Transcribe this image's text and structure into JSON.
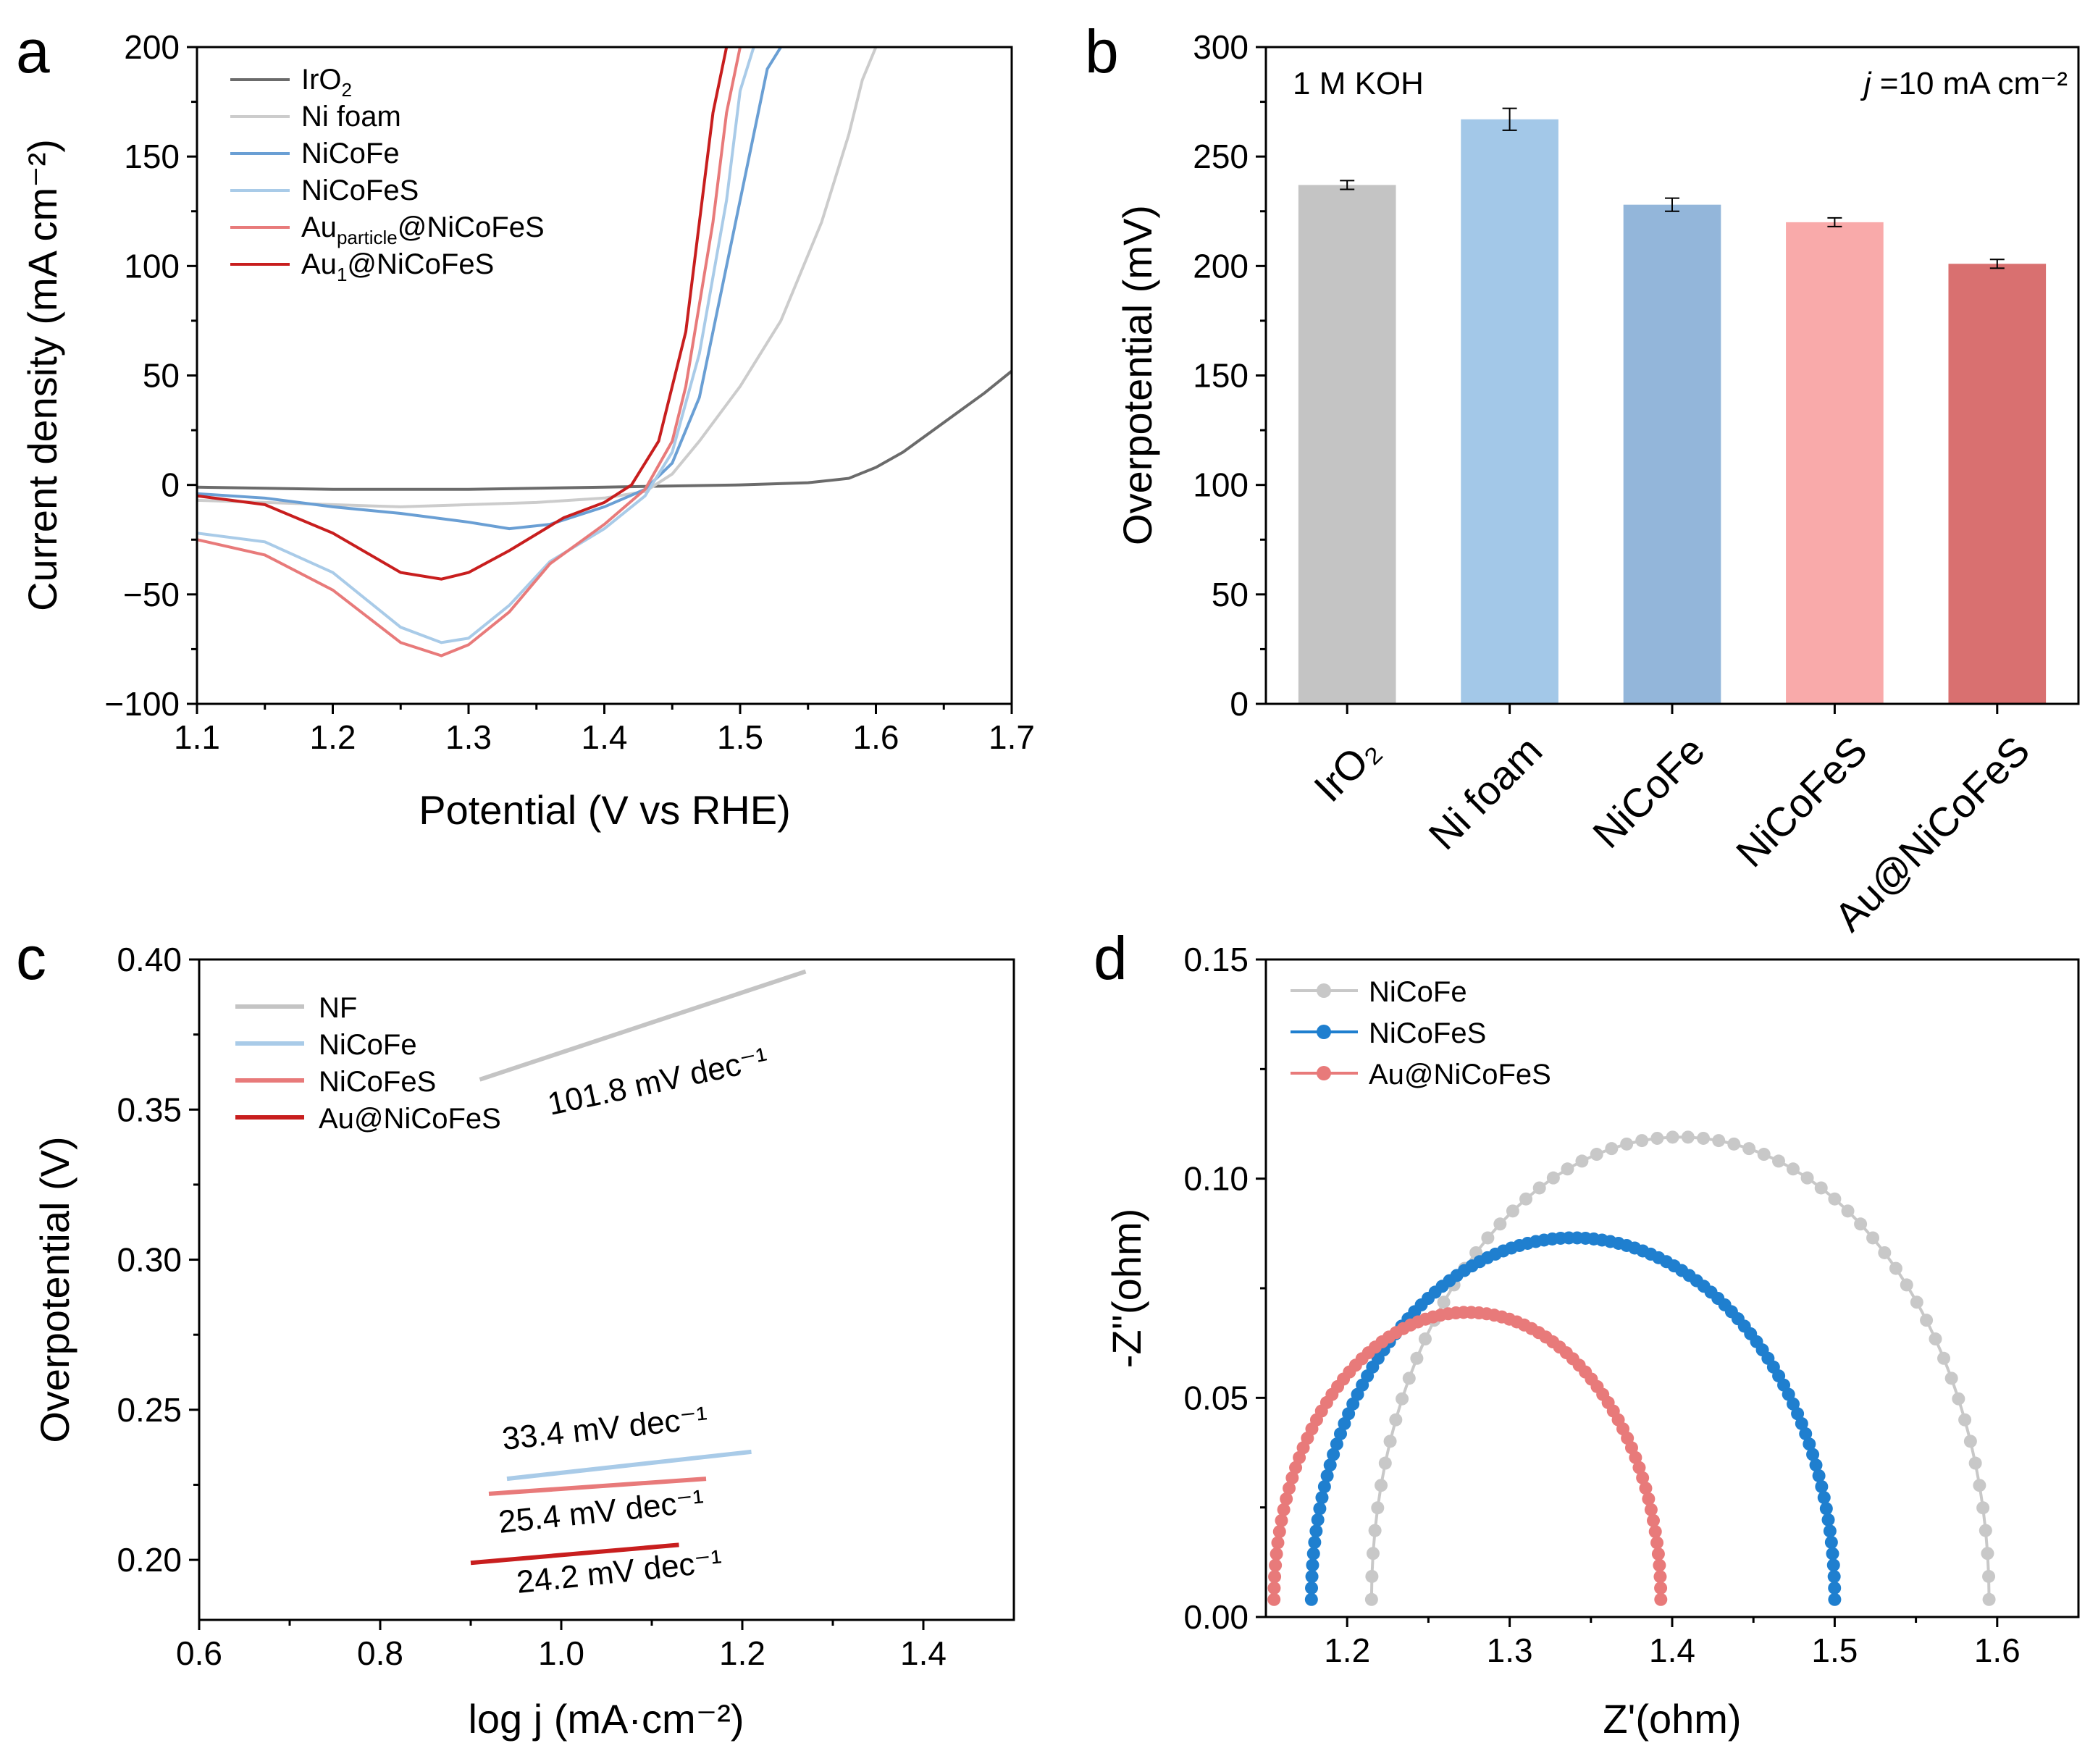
{
  "chart_data": [
    {
      "panel": "a",
      "type": "line",
      "title": "",
      "xlabel": "Potential (V vs RHE)",
      "ylabel": "Current density (mA cm⁻²)",
      "xlim": [
        1.1,
        1.7
      ],
      "ylim": [
        -100,
        200
      ],
      "xticks": [
        1.1,
        1.2,
        1.3,
        1.4,
        1.5,
        1.6,
        1.7
      ],
      "yticks": [
        -100,
        -50,
        0,
        50,
        100,
        150,
        200
      ],
      "xtick_labels": [
        "1.1",
        "1.2",
        "1.3",
        "1.4",
        "1.5",
        "1.6",
        "1.7"
      ],
      "ytick_labels": [
        "−100",
        "−50",
        "0",
        "50",
        "100",
        "150",
        "200"
      ],
      "legend_position": "top-left",
      "series": [
        {
          "name": "IrO₂",
          "color": "#6b6b6b",
          "x": [
            1.1,
            1.15,
            1.2,
            1.25,
            1.3,
            1.35,
            1.4,
            1.45,
            1.5,
            1.55,
            1.58,
            1.6,
            1.62,
            1.64,
            1.66,
            1.68,
            1.7
          ],
          "y": [
            -1,
            -1.5,
            -2,
            -2,
            -2,
            -1.5,
            -1,
            -0.5,
            0,
            1,
            3,
            8,
            15,
            24,
            33,
            42,
            52
          ]
        },
        {
          "name": "Ni foam",
          "color": "#cccccc",
          "x": [
            1.1,
            1.2,
            1.25,
            1.3,
            1.35,
            1.4,
            1.43,
            1.45,
            1.47,
            1.5,
            1.53,
            1.56,
            1.58,
            1.59,
            1.6
          ],
          "y": [
            -7,
            -9,
            -10,
            -9,
            -8,
            -6,
            -3,
            5,
            20,
            45,
            75,
            120,
            160,
            185,
            200
          ]
        },
        {
          "name": "NiCoFe",
          "color": "#6a9fd4",
          "x": [
            1.1,
            1.15,
            1.2,
            1.25,
            1.3,
            1.33,
            1.36,
            1.4,
            1.43,
            1.45,
            1.47,
            1.49,
            1.51,
            1.52,
            1.53
          ],
          "y": [
            -4,
            -6,
            -10,
            -13,
            -17,
            -20,
            -18,
            -10,
            -2,
            10,
            40,
            100,
            160,
            190,
            200
          ]
        },
        {
          "name": "NiCoFeS",
          "color": "#a9cbe8",
          "x": [
            1.1,
            1.15,
            1.2,
            1.25,
            1.28,
            1.3,
            1.33,
            1.36,
            1.4,
            1.43,
            1.45,
            1.47,
            1.49,
            1.5,
            1.51
          ],
          "y": [
            -22,
            -26,
            -40,
            -65,
            -72,
            -70,
            -55,
            -35,
            -20,
            -5,
            15,
            60,
            130,
            180,
            200
          ]
        },
        {
          "name": "Au_particle@NiCoFeS",
          "color": "#e87a7a",
          "x": [
            1.1,
            1.15,
            1.2,
            1.25,
            1.28,
            1.3,
            1.33,
            1.36,
            1.4,
            1.43,
            1.45,
            1.46,
            1.48,
            1.49,
            1.5
          ],
          "y": [
            -25,
            -32,
            -48,
            -72,
            -78,
            -73,
            -58,
            -36,
            -18,
            -2,
            20,
            45,
            120,
            170,
            200
          ]
        },
        {
          "name": "Au₁@NiCoFeS",
          "color": "#c81e1e",
          "x": [
            1.1,
            1.15,
            1.2,
            1.25,
            1.28,
            1.3,
            1.33,
            1.37,
            1.4,
            1.42,
            1.44,
            1.46,
            1.47,
            1.48,
            1.49
          ],
          "y": [
            -5,
            -9,
            -22,
            -40,
            -43,
            -40,
            -30,
            -15,
            -8,
            0,
            20,
            70,
            120,
            170,
            200
          ]
        }
      ],
      "legend": [
        {
          "base": "IrO",
          "sub": "2",
          "tail": ""
        },
        {
          "base": "Ni foam",
          "sub": "",
          "tail": ""
        },
        {
          "base": "NiCoFe",
          "sub": "",
          "tail": ""
        },
        {
          "base": "NiCoFeS",
          "sub": "",
          "tail": ""
        },
        {
          "base": "Au",
          "sub": "particle",
          "tail": "@NiCoFeS"
        },
        {
          "base": "Au",
          "sub": "1",
          "tail": "@NiCoFeS"
        }
      ]
    },
    {
      "panel": "b",
      "type": "bar",
      "title": "",
      "xlabel": "",
      "ylabel": "Overpotential (mV)",
      "ylim": [
        0,
        300
      ],
      "yticks": [
        0,
        50,
        100,
        150,
        200,
        250,
        300
      ],
      "categories": [
        "IrO₂",
        "Ni foam",
        "NiCoFe",
        "NiCoFeS",
        "Au@NiCoFeS"
      ],
      "values": [
        237,
        267,
        228,
        220,
        201
      ],
      "errors": [
        2,
        5,
        3,
        2,
        2
      ],
      "colors": [
        "#c4c4c4",
        "#a3c8e8",
        "#93b6da",
        "#f9aaaa",
        "#d97070"
      ],
      "annotations": {
        "electrolyte": "1 M KOH",
        "current_prefix": "j",
        "current_text": " =10 mA cm⁻²"
      }
    },
    {
      "panel": "c",
      "type": "line",
      "title": "",
      "xlabel": "log j (mA·cm⁻²)",
      "ylabel": "Overpotential (V)",
      "xlim": [
        0.6,
        1.5
      ],
      "ylim": [
        0.18,
        0.4
      ],
      "xticks": [
        0.6,
        0.8,
        1.0,
        1.2,
        1.4
      ],
      "yticks": [
        0.2,
        0.25,
        0.3,
        0.35,
        0.4
      ],
      "xtick_labels": [
        "0.6",
        "0.8",
        "1.0",
        "1.2",
        "1.4"
      ],
      "ytick_labels": [
        "0.20",
        "0.25",
        "0.30",
        "0.35",
        "0.40"
      ],
      "legend_position": "top-left",
      "series": [
        {
          "name": "NF",
          "color": "#c4c4c4",
          "x": [
            0.91,
            1.27
          ],
          "y": [
            0.36,
            0.396
          ],
          "slope_label": "101.8 mV dec⁻¹"
        },
        {
          "name": "NiCoFe",
          "color": "#a9cbe8",
          "x": [
            0.94,
            1.21
          ],
          "y": [
            0.227,
            0.236
          ],
          "slope_label": "33.4 mV dec⁻¹"
        },
        {
          "name": "NiCoFeS",
          "color": "#e87a7a",
          "x": [
            0.92,
            1.16
          ],
          "y": [
            0.222,
            0.227
          ],
          "slope_label": "25.4 mV dec⁻¹"
        },
        {
          "name": "Au@NiCoFeS",
          "color": "#c81e1e",
          "x": [
            0.9,
            1.13
          ],
          "y": [
            0.199,
            0.205
          ],
          "slope_label": "24.2 mV dec⁻¹"
        }
      ],
      "slope_label_colors": [
        "#9a9a9a",
        "#2f6fb0",
        "#e05a5a",
        "#c81e1e"
      ]
    },
    {
      "panel": "d",
      "type": "scatter",
      "title": "",
      "xlabel": "Z'(ohm)",
      "ylabel": "-Z''(ohm)",
      "xlim": [
        1.15,
        1.65
      ],
      "ylim": [
        0,
        0.15
      ],
      "xticks": [
        1.2,
        1.3,
        1.4,
        1.5,
        1.6
      ],
      "yticks": [
        0,
        0.05,
        0.1,
        0.15
      ],
      "xtick_labels": [
        "1.2",
        "1.3",
        "1.4",
        "1.5",
        "1.6"
      ],
      "ytick_labels": [
        "0.00",
        "0.05",
        "0.10",
        "0.15"
      ],
      "legend_position": "top-left",
      "series": [
        {
          "name": "NiCoFe",
          "color": "#c8c8c8",
          "r_start": 1.215,
          "r_end": 1.595,
          "peak": 0.1055,
          "n_points": 64
        },
        {
          "name": "NiCoFeS",
          "color": "#1f7fcf",
          "r_start": 1.178,
          "r_end": 1.5,
          "peak": 0.0825,
          "n_points": 100
        },
        {
          "name": "Au@NiCoFeS",
          "color": "#e87a7a",
          "r_start": 1.155,
          "r_end": 1.393,
          "peak": 0.0655,
          "n_points": 80
        }
      ]
    }
  ],
  "panels": {
    "a": "a",
    "b": "b",
    "c": "c",
    "d": "d"
  }
}
